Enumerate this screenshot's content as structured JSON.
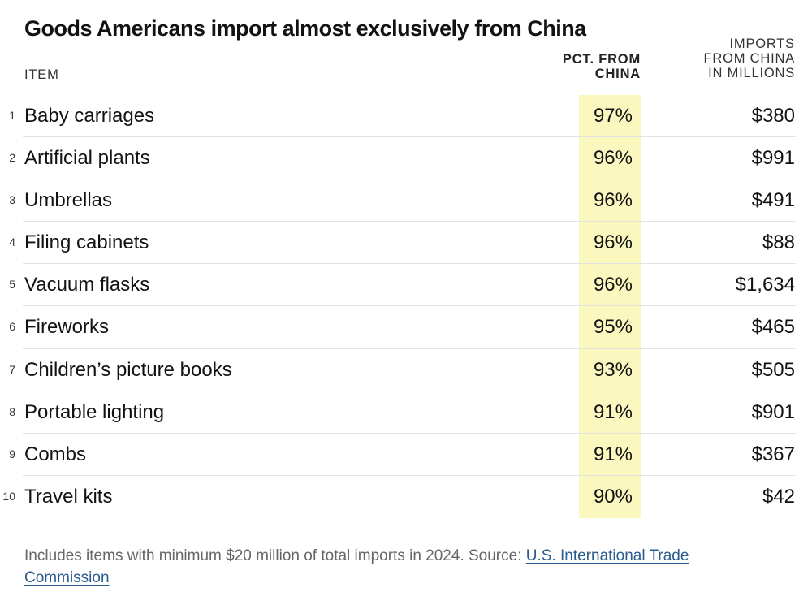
{
  "chart_data": {
    "type": "table",
    "title": "Goods Americans import almost exclusively from China",
    "columns": {
      "item": "ITEM",
      "pct_line1": "PCT. FROM",
      "pct_line2": "CHINA",
      "imports_line1": "IMPORTS",
      "imports_line2": "FROM CHINA",
      "imports_line3": "IN MILLIONS"
    },
    "rows": [
      {
        "rank": "1",
        "item": "Baby carriages",
        "pct": "97%",
        "imports": "$380"
      },
      {
        "rank": "2",
        "item": "Artificial plants",
        "pct": "96%",
        "imports": "$991"
      },
      {
        "rank": "3",
        "item": "Umbrellas",
        "pct": "96%",
        "imports": "$491"
      },
      {
        "rank": "4",
        "item": "Filing cabinets",
        "pct": "96%",
        "imports": "$88"
      },
      {
        "rank": "5",
        "item": "Vacuum flasks",
        "pct": "96%",
        "imports": "$1,634"
      },
      {
        "rank": "6",
        "item": "Fireworks",
        "pct": "95%",
        "imports": "$465"
      },
      {
        "rank": "7",
        "item": "Children’s picture books",
        "pct": "93%",
        "imports": "$505"
      },
      {
        "rank": "8",
        "item": "Portable lighting",
        "pct": "91%",
        "imports": "$901"
      },
      {
        "rank": "9",
        "item": "Combs",
        "pct": "91%",
        "imports": "$367"
      },
      {
        "rank": "10",
        "item": "Travel kits",
        "pct": "90%",
        "imports": "$42"
      }
    ],
    "highlight_color": "#fbf8bf"
  },
  "footnote": {
    "text": "Includes items with minimum $20 million of total imports in 2024. Source: ",
    "link_text": "U.S. International Trade Commission"
  }
}
